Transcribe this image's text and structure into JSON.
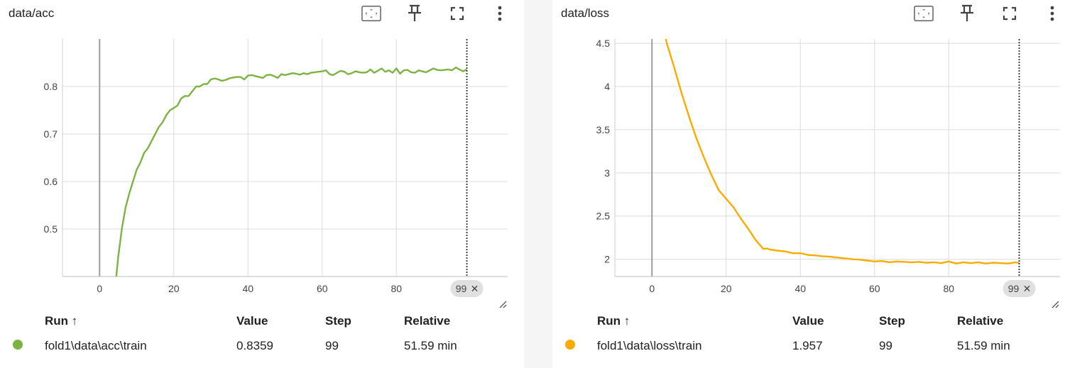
{
  "toolbar": {
    "fit_icon": "fit-domain-icon",
    "pin_icon": "pin-icon",
    "fullscreen_icon": "fullscreen-icon",
    "menu_icon": "more-vert-icon",
    "resize_icon": "resize-handle-icon"
  },
  "table_headers": {
    "run": "Run ↑",
    "value": "Value",
    "step": "Step",
    "relative": "Relative"
  },
  "chart_data": [
    {
      "type": "line",
      "title": "data/acc",
      "xlabel": "",
      "ylabel": "",
      "xlim": [
        -10,
        110
      ],
      "ylim": [
        0.4,
        0.9
      ],
      "x_ticks": [
        0,
        20,
        40,
        60,
        80
      ],
      "y_ticks": [
        0.5,
        0.6,
        0.7,
        0.8
      ],
      "y_tick_labels": [
        "0.5",
        "0.6",
        "0.7",
        "0.8"
      ],
      "hover_step": 99,
      "hover_label": "99",
      "color": "#7cb342",
      "grid": true,
      "series": [
        {
          "name": "fold1\\data\\acc\\train",
          "x": [
            4.5,
            5,
            6,
            7,
            8,
            9,
            10,
            11,
            12,
            13,
            14,
            15,
            16,
            17,
            18,
            19,
            20,
            21,
            22,
            23,
            24,
            25,
            26,
            27,
            28,
            29,
            30,
            31,
            32,
            33,
            34,
            35,
            36,
            37,
            38,
            39,
            40,
            41,
            42,
            43,
            44,
            45,
            46,
            47,
            48,
            49,
            50,
            51,
            52,
            53,
            54,
            55,
            56,
            57,
            58,
            59,
            60,
            61,
            62,
            63,
            64,
            65,
            66,
            67,
            68,
            69,
            70,
            71,
            72,
            73,
            74,
            75,
            76,
            77,
            78,
            79,
            80,
            81,
            82,
            83,
            84,
            85,
            86,
            87,
            88,
            89,
            90,
            91,
            92,
            93,
            94,
            95,
            96,
            97,
            98,
            99
          ],
          "y": [
            0.4,
            0.44,
            0.5,
            0.545,
            0.575,
            0.6,
            0.625,
            0.64,
            0.66,
            0.67,
            0.685,
            0.7,
            0.715,
            0.725,
            0.74,
            0.75,
            0.755,
            0.76,
            0.775,
            0.78,
            0.78,
            0.79,
            0.8,
            0.8,
            0.805,
            0.805,
            0.815,
            0.817,
            0.815,
            0.812,
            0.814,
            0.817,
            0.819,
            0.82,
            0.82,
            0.815,
            0.823,
            0.824,
            0.822,
            0.82,
            0.818,
            0.824,
            0.825,
            0.822,
            0.818,
            0.826,
            0.824,
            0.826,
            0.828,
            0.827,
            0.825,
            0.828,
            0.826,
            0.829,
            0.83,
            0.831,
            0.832,
            0.834,
            0.826,
            0.824,
            0.829,
            0.833,
            0.831,
            0.826,
            0.828,
            0.832,
            0.83,
            0.829,
            0.83,
            0.836,
            0.829,
            0.833,
            0.838,
            0.831,
            0.834,
            0.829,
            0.838,
            0.827,
            0.834,
            0.835,
            0.83,
            0.829,
            0.834,
            0.832,
            0.83,
            0.834,
            0.838,
            0.835,
            0.834,
            0.835,
            0.836,
            0.834,
            0.84,
            0.836,
            0.832,
            0.8359
          ],
          "value": "0.8359",
          "step": "99",
          "relative": "51.59 min"
        }
      ]
    },
    {
      "type": "line",
      "title": "data/loss",
      "xlabel": "",
      "ylabel": "",
      "xlim": [
        -10,
        110
      ],
      "ylim": [
        1.8,
        4.55
      ],
      "x_ticks": [
        0,
        20,
        40,
        60,
        80
      ],
      "y_ticks": [
        2,
        2.5,
        3,
        3.5,
        4,
        4.5
      ],
      "y_tick_labels": [
        "2",
        "2.5",
        "3",
        "3.5",
        "4",
        "4.5"
      ],
      "hover_step": 99,
      "hover_label": "99",
      "color": "#f9ab00",
      "grid": true,
      "series": [
        {
          "name": "fold1\\data\\loss\\train",
          "x": [
            3.5,
            4,
            6,
            8,
            10,
            12,
            14,
            16,
            18,
            20,
            22,
            24,
            26,
            28,
            29,
            30,
            31,
            32,
            34,
            36,
            38,
            40,
            42,
            44,
            46,
            48,
            50,
            52,
            54,
            56,
            58,
            60,
            62,
            64,
            66,
            68,
            70,
            72,
            74,
            76,
            78,
            80,
            82,
            84,
            86,
            88,
            90,
            92,
            94,
            96,
            98,
            99
          ],
          "y": [
            4.6,
            4.5,
            4.22,
            3.92,
            3.65,
            3.4,
            3.18,
            2.98,
            2.8,
            2.7,
            2.6,
            2.47,
            2.35,
            2.22,
            2.17,
            2.12,
            2.125,
            2.11,
            2.1,
            2.09,
            2.07,
            2.07,
            2.05,
            2.045,
            2.035,
            2.03,
            2.02,
            2.01,
            2.0,
            1.995,
            1.985,
            1.975,
            1.98,
            1.965,
            1.975,
            1.97,
            1.965,
            1.97,
            1.96,
            1.965,
            1.955,
            1.975,
            1.95,
            1.965,
            1.955,
            1.965,
            1.95,
            1.96,
            1.955,
            1.95,
            1.965,
            1.957
          ],
          "value": "1.957",
          "step": "99",
          "relative": "51.59 min"
        }
      ]
    }
  ]
}
